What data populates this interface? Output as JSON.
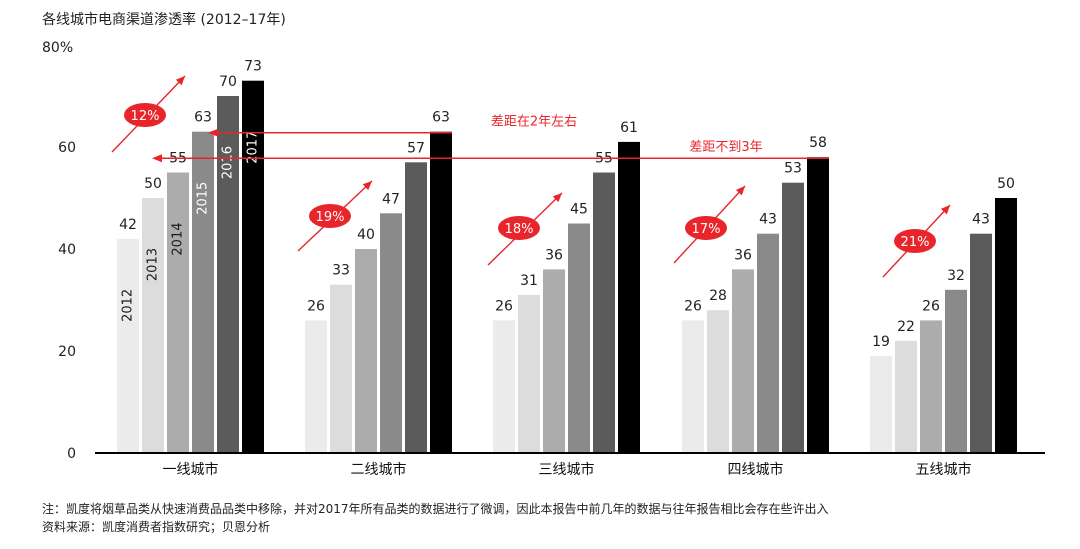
{
  "chart_data": {
    "type": "bar",
    "title": "各线城市电商渠道渗透率 (2012–17年)",
    "y_top_label": "80%",
    "ylim": [
      0,
      80
    ],
    "yticks": [
      0,
      20,
      40,
      60
    ],
    "categories": [
      "一线城市",
      "二线城市",
      "三线城市",
      "四线城市",
      "五线城市"
    ],
    "series": [
      {
        "name": "2012",
        "color": "#ebebeb",
        "values": [
          42,
          26,
          26,
          26,
          19
        ]
      },
      {
        "name": "2013",
        "color": "#dcdcdc",
        "values": [
          50,
          33,
          31,
          28,
          22
        ]
      },
      {
        "name": "2014",
        "color": "#acacac",
        "values": [
          55,
          40,
          36,
          36,
          26
        ]
      },
      {
        "name": "2015",
        "color": "#8a8a8a",
        "values": [
          63,
          47,
          45,
          43,
          32
        ]
      },
      {
        "name": "2016",
        "color": "#5b5b5b",
        "values": [
          70,
          57,
          55,
          53,
          43
        ]
      },
      {
        "name": "2017",
        "color": "#000000",
        "values": [
          73,
          63,
          61,
          58,
          50
        ]
      }
    ],
    "growth_rates": [
      "12%",
      "19%",
      "18%",
      "17%",
      "21%"
    ],
    "annotations": [
      {
        "text": "差距在2年左右",
        "from_group": 1,
        "to_group": 0,
        "value": 63
      },
      {
        "text": "差距不到3年",
        "from_group": 3,
        "to_group": 0,
        "value": 58
      }
    ],
    "accent_color": "#e8252b",
    "grid": false,
    "legend": "year labels inside first group bars"
  },
  "footnote": "注：凯度将烟草品类从快速消费品品类中移除，并对2017年所有品类的数据进行了微调，因此本报告中前几年的数据与往年报告相比会存在些许出入",
  "source": "资料来源：凯度消费者指数研究；贝恩分析"
}
